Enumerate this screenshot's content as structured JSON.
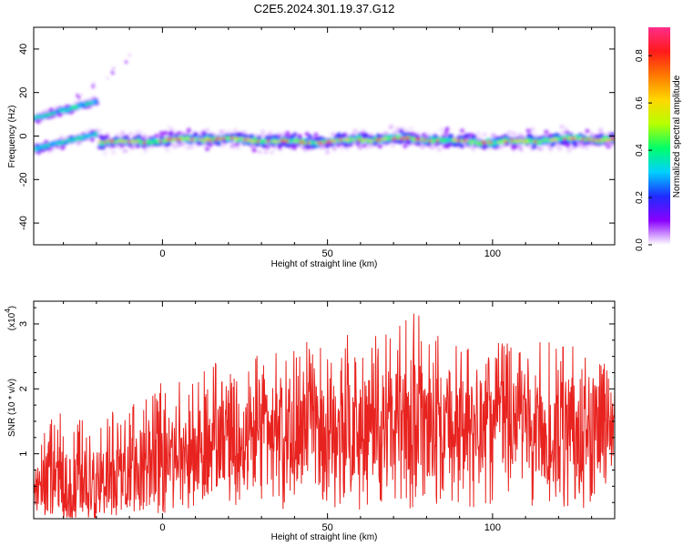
{
  "title": "C2E5.2024.301.19.37.G12",
  "chart_data": [
    {
      "type": "heatmap",
      "name": "spectrogram",
      "xlabel": "Height of straight line (km)",
      "ylabel": "Frequency (Hz)",
      "xlim": [
        -39,
        137
      ],
      "ylim": [
        -50,
        50
      ],
      "x_ticks": [
        0,
        50,
        100
      ],
      "y_ticks": [
        -40,
        -20,
        0,
        20,
        40
      ],
      "colorbar": {
        "label": "Normalized spectral amplitude",
        "range": [
          0,
          0.92
        ],
        "ticks": [
          0.0,
          0.2,
          0.4,
          0.6,
          0.8
        ],
        "tick_labels": [
          "0.0",
          "0.2",
          "0.4",
          "0.6",
          "0.8"
        ],
        "colors": [
          "#ffffff",
          "#8a00ff",
          "#1f2bff",
          "#00d0ff",
          "#00ff6a",
          "#b6ff00",
          "#ffd700",
          "#ff7a00",
          "#ff1a1a",
          "#ff2d8a"
        ]
      },
      "features": [
        {
          "segment": "upper-branch",
          "x": [
            -39,
            -20
          ],
          "freq": [
            8,
            16
          ],
          "peak_amplitude": 0.35
        },
        {
          "segment": "lower-branch",
          "x": [
            -39,
            -20
          ],
          "freq": [
            -6,
            1
          ],
          "peak_amplitude": 0.3
        },
        {
          "segment": "main-band",
          "x": [
            -19,
            137
          ],
          "freq_center": -2,
          "freq_halfwidth": 5,
          "peak_amplitude": 0.9
        }
      ]
    },
    {
      "type": "line",
      "name": "snr",
      "xlabel": "Height of straight line (km)",
      "ylabel": "SNR (10 * v/v)",
      "scale_label": "(x10",
      "scale_exponent": "4",
      "xlim": [
        -39,
        137
      ],
      "ylim": [
        0,
        3.35
      ],
      "x_ticks": [
        0,
        50,
        100
      ],
      "y_ticks": [
        1,
        2,
        3
      ],
      "line_color": "#e8231f",
      "envelope": {
        "x": [
          -39,
          -30,
          -20,
          -10,
          0,
          10,
          20,
          30,
          40,
          50,
          60,
          70,
          76,
          80,
          90,
          100,
          110,
          120,
          130,
          137
        ],
        "y_mean": [
          0.45,
          0.55,
          0.5,
          0.7,
          0.8,
          1.0,
          1.1,
          1.25,
          1.3,
          1.35,
          1.4,
          1.5,
          1.6,
          1.45,
          1.4,
          1.4,
          1.35,
          1.35,
          1.3,
          1.3
        ],
        "y_peak": [
          1.2,
          1.75,
          1.5,
          1.8,
          2.15,
          2.3,
          2.5,
          2.6,
          2.7,
          2.85,
          2.9,
          3.0,
          3.35,
          2.9,
          2.7,
          2.75,
          2.7,
          2.8,
          2.95,
          2.1
        ]
      }
    }
  ]
}
